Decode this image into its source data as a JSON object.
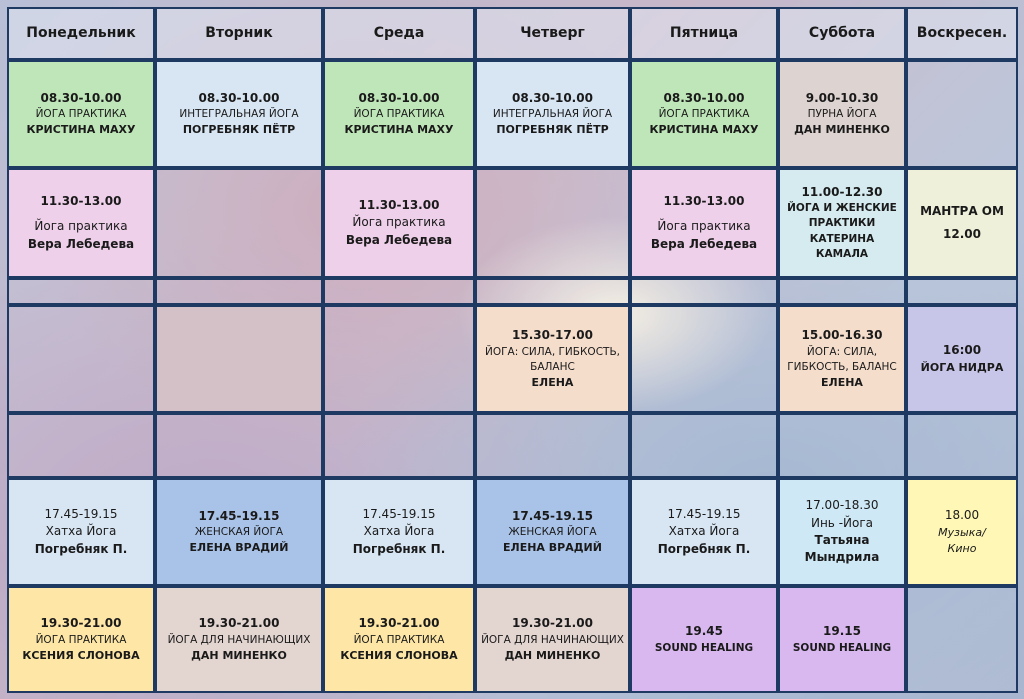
{
  "days": [
    "Понедельник",
    "Вторник",
    "Среда",
    "Четверг",
    "Пятница",
    "Суббота",
    "Воскресен."
  ],
  "row1": {
    "mon": {
      "time": "08.30-10.00",
      "name": "ЙОГА ПРАКТИКА",
      "person": "КРИСТИНА МАХУ"
    },
    "tue": {
      "time": "08.30-10.00",
      "name": "ИНТЕГРАЛЬНАЯ ЙОГА",
      "person": "ПОГРЕБНЯК ПЁТР"
    },
    "wed": {
      "time": "08.30-10.00",
      "name": "ЙОГА ПРАКТИКА",
      "person": "КРИСТИНА МАХУ"
    },
    "thu": {
      "time": "08.30-10.00",
      "name": "ИНТЕГРАЛЬНАЯ ЙОГА",
      "person": "ПОГРЕБНЯК ПЁТР"
    },
    "fri": {
      "time": "08.30-10.00",
      "name": "ЙОГА ПРАКТИКА",
      "person": "КРИСТИНА МАХУ"
    },
    "sat": {
      "time": "9.00-10.30",
      "name": "ПУРНА ЙОГА",
      "person": "ДАН МИНЕНКО"
    }
  },
  "row2": {
    "mon": {
      "time": "11.30-13.00",
      "name": "Йога практика",
      "person": "Вера Лебедева"
    },
    "wed": {
      "time": "11.30-13.00",
      "name": "Йога практика",
      "person": "Вера Лебедева"
    },
    "fri": {
      "time": "11.30-13.00",
      "name": "Йога практика",
      "person": "Вера Лебедева"
    },
    "sat": {
      "time": "11.00-12.30",
      "name1": "ЙОГА И ЖЕНСКИЕ",
      "name2": "ПРАКТИКИ",
      "person": "КАТЕРИНА КАМАЛА"
    },
    "sun": {
      "name": "МАНТРА ОМ",
      "time": "12.00"
    }
  },
  "row3": {
    "thu": {
      "time": "15.30-17.00",
      "name1": "ЙОГА: СИЛА, ГИБКОСТЬ,",
      "name2": "БАЛАНС",
      "person": "ЕЛЕНА"
    },
    "sat": {
      "time": "15.00-16.30",
      "name1": "ЙОГА: СИЛА,",
      "name2": "ГИБКОСТЬ, БАЛАНС",
      "person": "ЕЛЕНА"
    },
    "sun": {
      "time": "16:00",
      "name": "ЙОГА НИДРА"
    }
  },
  "row4": {
    "mon": {
      "time": "17.45-19.15",
      "name": "Хатха Йога",
      "person": "Погребняк П."
    },
    "tue": {
      "time": "17.45-19.15",
      "name": "ЖЕНСКАЯ ЙОГА",
      "person": "ЕЛЕНА ВРАДИЙ"
    },
    "wed": {
      "time": "17.45-19.15",
      "name": "Хатха Йога",
      "person": "Погребняк П."
    },
    "thu": {
      "time": "17.45-19.15",
      "name": "ЖЕНСКАЯ ЙОГА",
      "person": "ЕЛЕНА ВРАДИЙ"
    },
    "fri": {
      "time": "17.45-19.15",
      "name": "Хатха Йога",
      "person": "Погребняк П."
    },
    "sat": {
      "time": "17.00-18.30",
      "name": "Инь -Йога",
      "person1": "Татьяна",
      "person2": "Мындрила"
    },
    "sun": {
      "time": "18.00",
      "name1": "Музыка/",
      "name2": "Кино"
    }
  },
  "row5": {
    "mon": {
      "time": "19.30-21.00",
      "name": "ЙОГА ПРАКТИКА",
      "person": "КСЕНИЯ СЛОНОВА"
    },
    "tue": {
      "time": "19.30-21.00",
      "name": "ЙОГА ДЛЯ НАЧИНАЮЩИХ",
      "person": "ДАН МИНЕНКО"
    },
    "wed": {
      "time": "19.30-21.00",
      "name": "ЙОГА ПРАКТИКА",
      "person": "КСЕНИЯ СЛОНОВА"
    },
    "thu": {
      "time": "19.30-21.00",
      "name": "ЙОГА ДЛЯ НАЧИНАЮЩИХ",
      "person": "ДАН МИНЕНКО"
    },
    "fri": {
      "time": "19.45",
      "name": "SOUND HEALING"
    },
    "sat": {
      "time": "19.15",
      "name": "SOUND HEALING"
    }
  },
  "colors": {
    "border": "#1e3a63"
  }
}
